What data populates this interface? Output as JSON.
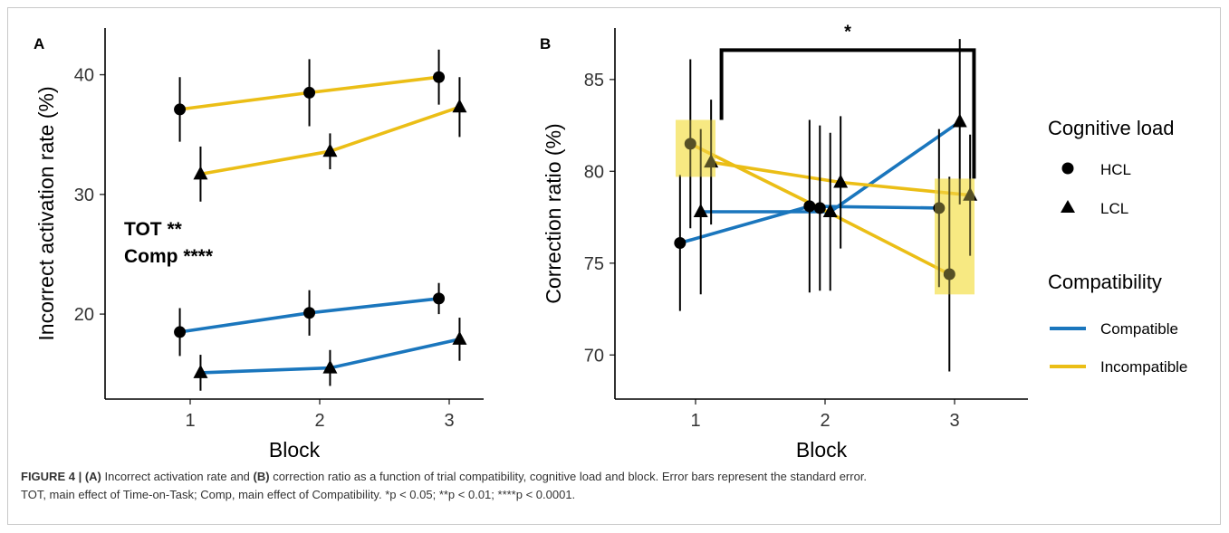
{
  "colors": {
    "compatible": "#1a76bd",
    "incompatible": "#ebbe16",
    "highlight": "#f5e46a",
    "axis": "#000000"
  },
  "chart_data": [
    {
      "panel": "A",
      "type": "line",
      "xlabel": "Block",
      "ylabel": "Incorrect activation rate (%)",
      "categories": [
        "1",
        "2",
        "3"
      ],
      "yticks": [
        "20",
        "30",
        "40"
      ],
      "ylim": [
        12.9,
        43.9
      ],
      "annotations": [
        "TOT **",
        "Comp ****"
      ],
      "series": [
        {
          "load": "HCL",
          "compatibility": "Incompatible",
          "marker": "circle",
          "x": [
            1,
            2,
            3
          ],
          "offset": -0.08,
          "values": [
            37.1,
            38.5,
            39.8
          ],
          "se": [
            2.7,
            2.8,
            2.3
          ]
        },
        {
          "load": "LCL",
          "compatibility": "Incompatible",
          "marker": "triangle",
          "x": [
            1,
            2,
            3
          ],
          "offset": 0.08,
          "values": [
            31.7,
            33.6,
            37.3
          ],
          "se": [
            2.3,
            1.5,
            2.5
          ]
        },
        {
          "load": "HCL",
          "compatibility": "Compatible",
          "marker": "circle",
          "x": [
            1,
            2,
            3
          ],
          "offset": -0.08,
          "values": [
            18.5,
            20.1,
            21.3
          ],
          "se": [
            2.0,
            1.9,
            1.3
          ]
        },
        {
          "load": "LCL",
          "compatibility": "Compatible",
          "marker": "triangle",
          "x": [
            1,
            2,
            3
          ],
          "offset": 0.08,
          "values": [
            15.1,
            15.5,
            17.9
          ],
          "se": [
            1.5,
            1.5,
            1.8
          ]
        }
      ]
    },
    {
      "panel": "B",
      "type": "line",
      "xlabel": "Block",
      "ylabel": "Correction ratio (%)",
      "categories": [
        "1",
        "2",
        "3"
      ],
      "yticks": [
        "70",
        "75",
        "80",
        "85"
      ],
      "ylim": [
        67.6,
        87.8
      ],
      "significance": "*",
      "series": [
        {
          "load": "HCL",
          "compatibility": "Compatible",
          "marker": "circle",
          "x": [
            1,
            2,
            3
          ],
          "offset": -0.12,
          "values": [
            76.1,
            78.1,
            78.0
          ],
          "se": [
            3.7,
            4.7,
            4.3
          ]
        },
        {
          "load": "LCL",
          "compatibility": "Compatible",
          "marker": "triangle",
          "x": [
            1,
            2,
            3
          ],
          "offset": 0.04,
          "values": [
            77.8,
            77.8,
            82.7
          ],
          "se": [
            4.5,
            4.3,
            4.5
          ]
        },
        {
          "load": "HCL",
          "compatibility": "Incompatible",
          "marker": "circle",
          "x": [
            1,
            2,
            3
          ],
          "offset": -0.04,
          "values": [
            81.5,
            78.0,
            74.4
          ],
          "se": [
            4.6,
            4.5,
            5.3
          ]
        },
        {
          "load": "LCL",
          "compatibility": "Incompatible",
          "marker": "triangle",
          "x": [
            1,
            2,
            3
          ],
          "offset": 0.12,
          "values": [
            80.5,
            79.4,
            78.7
          ],
          "se": [
            3.4,
            3.6,
            3.3
          ]
        }
      ],
      "highlights": [
        {
          "block": 1,
          "range": [
            79.7,
            82.8
          ]
        },
        {
          "block": 3,
          "range": [
            73.3,
            79.6
          ]
        }
      ]
    }
  ],
  "legend": {
    "load_title": "Cognitive load",
    "load_items": [
      {
        "label": "HCL",
        "marker": "circle"
      },
      {
        "label": "LCL",
        "marker": "triangle"
      }
    ],
    "compat_title": "Compatibility",
    "compat_items": [
      {
        "label": "Compatible",
        "color": "#1a76bd"
      },
      {
        "label": "Incompatible",
        "color": "#ebbe16"
      }
    ]
  },
  "caption": {
    "figure_label": "FIGURE 4 |",
    "part_a": "(A)",
    "text_1": " Incorrect activation rate and ",
    "part_b": "(B)",
    "text_2": " correction ratio as a function of trial compatibility, cognitive load and block. Error bars represent the standard error.",
    "line_2": "TOT, main effect of Time-on-Task; Comp, main effect of Compatibility. *p < 0.05; **p < 0.01; ****p < 0.0001."
  }
}
